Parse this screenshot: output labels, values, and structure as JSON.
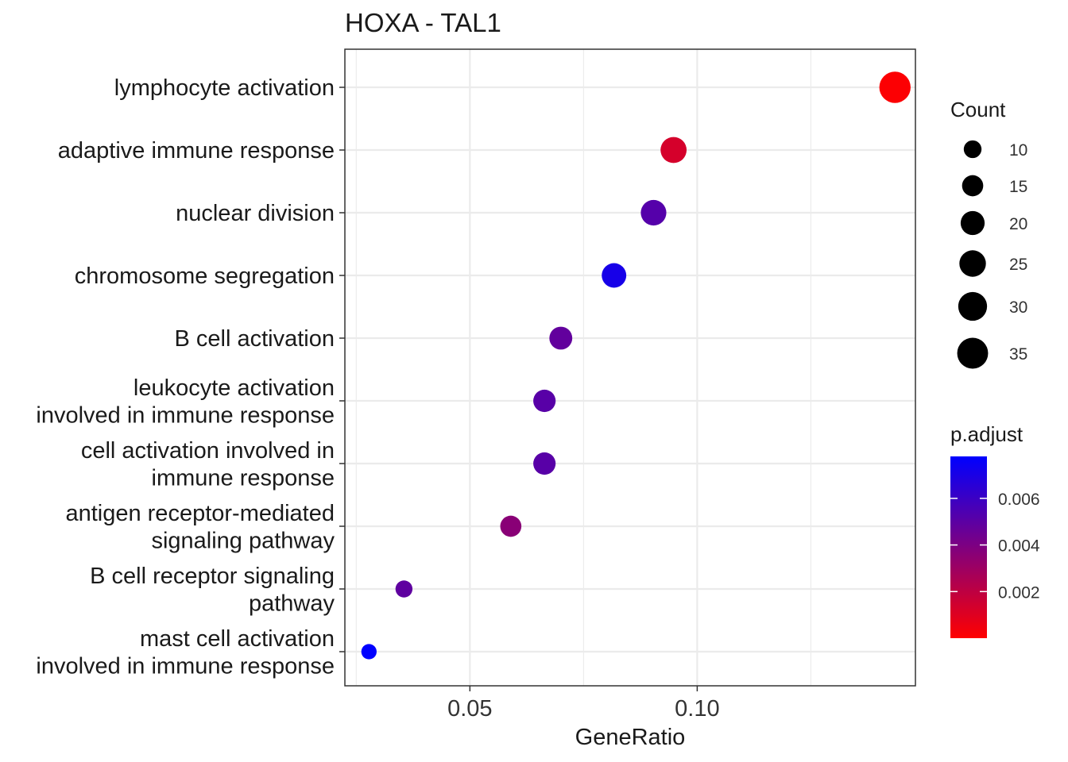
{
  "chart_data": {
    "type": "scatter",
    "title": "HOXA - TAL1",
    "xlabel": "GeneRatio",
    "ylabel": "",
    "xlim": [
      0.0225,
      0.148
    ],
    "xticks": [
      0.05,
      0.1
    ],
    "xtick_labels": [
      "0.05",
      "0.10"
    ],
    "grid": true,
    "categories": [
      [
        "lymphocyte activation"
      ],
      [
        "adaptive immune response"
      ],
      [
        "nuclear division"
      ],
      [
        "chromosome segregation"
      ],
      [
        "B cell activation"
      ],
      [
        "leukocyte activation",
        "involved in immune response"
      ],
      [
        "cell activation involved in",
        "immune response"
      ],
      [
        "antigen receptor-mediated",
        "signaling pathway"
      ],
      [
        "B cell receptor signaling",
        "pathway"
      ],
      [
        "mast cell activation",
        "involved in immune response"
      ]
    ],
    "points": [
      {
        "gene_ratio": 0.1435,
        "count": 36,
        "p_adjust": 0.0001
      },
      {
        "gene_ratio": 0.0948,
        "count": 24,
        "p_adjust": 0.0013
      },
      {
        "gene_ratio": 0.0904,
        "count": 23,
        "p_adjust": 0.0052
      },
      {
        "gene_ratio": 0.0817,
        "count": 21,
        "p_adjust": 0.0071
      },
      {
        "gene_ratio": 0.07,
        "count": 18,
        "p_adjust": 0.0048
      },
      {
        "gene_ratio": 0.0664,
        "count": 17,
        "p_adjust": 0.0051
      },
      {
        "gene_ratio": 0.0664,
        "count": 17,
        "p_adjust": 0.0051
      },
      {
        "gene_ratio": 0.059,
        "count": 15,
        "p_adjust": 0.0036
      },
      {
        "gene_ratio": 0.0355,
        "count": 9,
        "p_adjust": 0.0049
      },
      {
        "gene_ratio": 0.0278,
        "count": 7,
        "p_adjust": 0.0078
      }
    ],
    "legend": {
      "placement": "right",
      "size_title": "Count",
      "size_breaks": [
        10,
        15,
        20,
        25,
        30,
        35
      ],
      "color_title": "p.adjust",
      "color_breaks": [
        0.006,
        0.004,
        0.002
      ],
      "color_break_labels": [
        "0.006",
        "0.004",
        "0.002"
      ],
      "color_range": [
        0.0,
        0.0078
      ],
      "color_low": "#ff0000",
      "color_high": "#0000ff"
    }
  }
}
